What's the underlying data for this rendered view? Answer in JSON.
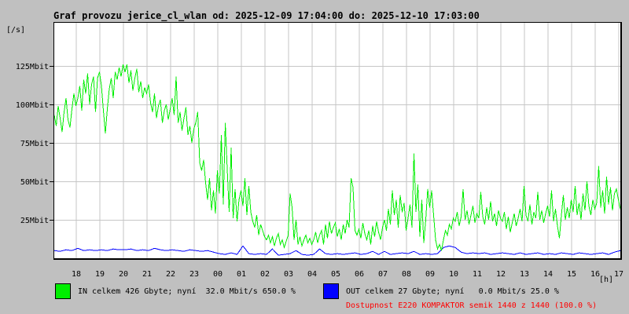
{
  "page": {
    "bg_color": "#c0c0c0"
  },
  "title": "Graf provozu jerice_cl_wlan od: 2025-12-09 17:04:00 do: 2025-12-10 17:03:00",
  "axis": {
    "y_unit": "[/s]",
    "x_unit": "[h]"
  },
  "legend": {
    "in": {
      "label": "IN celkem 426 Gbyte; nyní  32.0 Mbit/s 650.0 %",
      "color": "#00ee00"
    },
    "out": {
      "label": "OUT celkem 27 Gbyte; nyní   0.0 Mbit/s 25.0 %",
      "color": "#0000ff"
    },
    "availability": {
      "label": "Dostupnost E220 KOMPAKTOR semik 1440 z 1440 (100.0 %)",
      "color": "#ff0000"
    }
  },
  "chart_data": {
    "type": "line",
    "title": "Graf provozu jerice_cl_wlan od: 2025-12-09 17:04:00 do: 2025-12-10 17:03:00",
    "xlabel": "[h]",
    "ylabel": "[/s]",
    "x_start": "17:04",
    "x_end": "17:03",
    "ylim": [
      0,
      153
    ],
    "grid": true,
    "plot_bg": "#ffffff",
    "grid_color": "#c6c6c6",
    "border_color": "#000000",
    "yticks": [
      {
        "value": 25,
        "label": "25Mbit"
      },
      {
        "value": 50,
        "label": "50Mbit"
      },
      {
        "value": 75,
        "label": "75Mbit"
      },
      {
        "value": 100,
        "label": "100Mbit"
      },
      {
        "value": 125,
        "label": "125Mbit"
      }
    ],
    "xticks": [
      "18",
      "19",
      "20",
      "21",
      "22",
      "23",
      "00",
      "01",
      "02",
      "03",
      "04",
      "05",
      "06",
      "07",
      "08",
      "09",
      "10",
      "11",
      "12",
      "13",
      "14",
      "15",
      "16",
      "17"
    ],
    "series": [
      {
        "name": "IN",
        "unit": "Mbit/s",
        "color": "#00ee00",
        "values": [
          93,
          86,
          99,
          91,
          82,
          95,
          104,
          90,
          85,
          97,
          107,
          99,
          104,
          112,
          96,
          116,
          107,
          120,
          100,
          113,
          118,
          95,
          117,
          121,
          112,
          96,
          81,
          97,
          110,
          117,
          104,
          121,
          116,
          124,
          118,
          126,
          121,
          126,
          114,
          122,
          109,
          117,
          123,
          108,
          115,
          104,
          111,
          107,
          113,
          101,
          95,
          107,
          91,
          99,
          103,
          88,
          96,
          100,
          90,
          97,
          104,
          93,
          118,
          88,
          95,
          83,
          91,
          98,
          80,
          86,
          75,
          84,
          88,
          95,
          62,
          57,
          64,
          49,
          38,
          52,
          31,
          44,
          29,
          57,
          42,
          80,
          35,
          88,
          58,
          30,
          72,
          26,
          45,
          24,
          38,
          44,
          34,
          52,
          28,
          47,
          30,
          24,
          20,
          28,
          15,
          22,
          18,
          14,
          12,
          15,
          10,
          14,
          8,
          13,
          16,
          9,
          12,
          7,
          11,
          15,
          42,
          33,
          12,
          25,
          9,
          14,
          8,
          12,
          15,
          10,
          13,
          9,
          12,
          17,
          10,
          15,
          18,
          9,
          22,
          13,
          24,
          16,
          20,
          23,
          14,
          19,
          12,
          22,
          16,
          25,
          20,
          52,
          46,
          18,
          15,
          19,
          13,
          23,
          16,
          12,
          18,
          9,
          21,
          14,
          24,
          17,
          12,
          20,
          25,
          18,
          32,
          22,
          44,
          28,
          38,
          20,
          41,
          30,
          36,
          18,
          26,
          35,
          20,
          68,
          30,
          48,
          14,
          38,
          10,
          25,
          45,
          33,
          44,
          28,
          12,
          6,
          9,
          5,
          12,
          18,
          15,
          22,
          19,
          26,
          24,
          30,
          21,
          27,
          45,
          25,
          31,
          22,
          28,
          34,
          23,
          29,
          26,
          43,
          27,
          22,
          33,
          25,
          37,
          24,
          29,
          21,
          31,
          26,
          24,
          30,
          19,
          27,
          17,
          23,
          29,
          21,
          26,
          32,
          24,
          47,
          28,
          24,
          35,
          22,
          30,
          26,
          43,
          25,
          31,
          23,
          29,
          34,
          27,
          44,
          24,
          32,
          21,
          13,
          28,
          41,
          25,
          33,
          26,
          38,
          30,
          47,
          28,
          36,
          25,
          42,
          31,
          50,
          34,
          28,
          38,
          32,
          36,
          60,
          33,
          44,
          29,
          53,
          35,
          46,
          31,
          42,
          45,
          38,
          32
        ]
      },
      {
        "name": "OUT",
        "unit": "Mbit/s",
        "color": "#0000ff",
        "values": [
          5,
          4.5,
          5.5,
          5,
          6.5,
          5,
          5.5,
          5,
          5.5,
          5,
          6,
          5.5,
          5.5,
          6,
          5,
          5.5,
          5,
          6.5,
          5.5,
          5,
          5.5,
          5,
          4.5,
          5.5,
          5,
          4.5,
          5,
          4,
          3,
          2.5,
          3.5,
          2.5,
          8,
          3,
          2.5,
          3,
          2.5,
          6,
          2,
          2.5,
          3,
          5,
          2.5,
          2,
          2.5,
          6,
          3,
          2.5,
          3,
          2.5,
          3,
          3.5,
          2.5,
          3,
          4.5,
          2.5,
          4.5,
          2.5,
          3,
          3.5,
          3,
          4.5,
          2.5,
          3,
          2.5,
          3,
          7,
          8,
          7,
          4,
          3,
          3.5,
          3,
          3.5,
          2.5,
          3,
          3.5,
          3,
          2.5,
          3.5,
          2.5,
          3,
          3.5,
          2.5,
          3,
          2.5,
          3.5,
          3,
          2.5,
          3.5,
          3,
          2.5,
          3,
          3.5,
          2.5,
          4,
          5
        ]
      }
    ]
  }
}
